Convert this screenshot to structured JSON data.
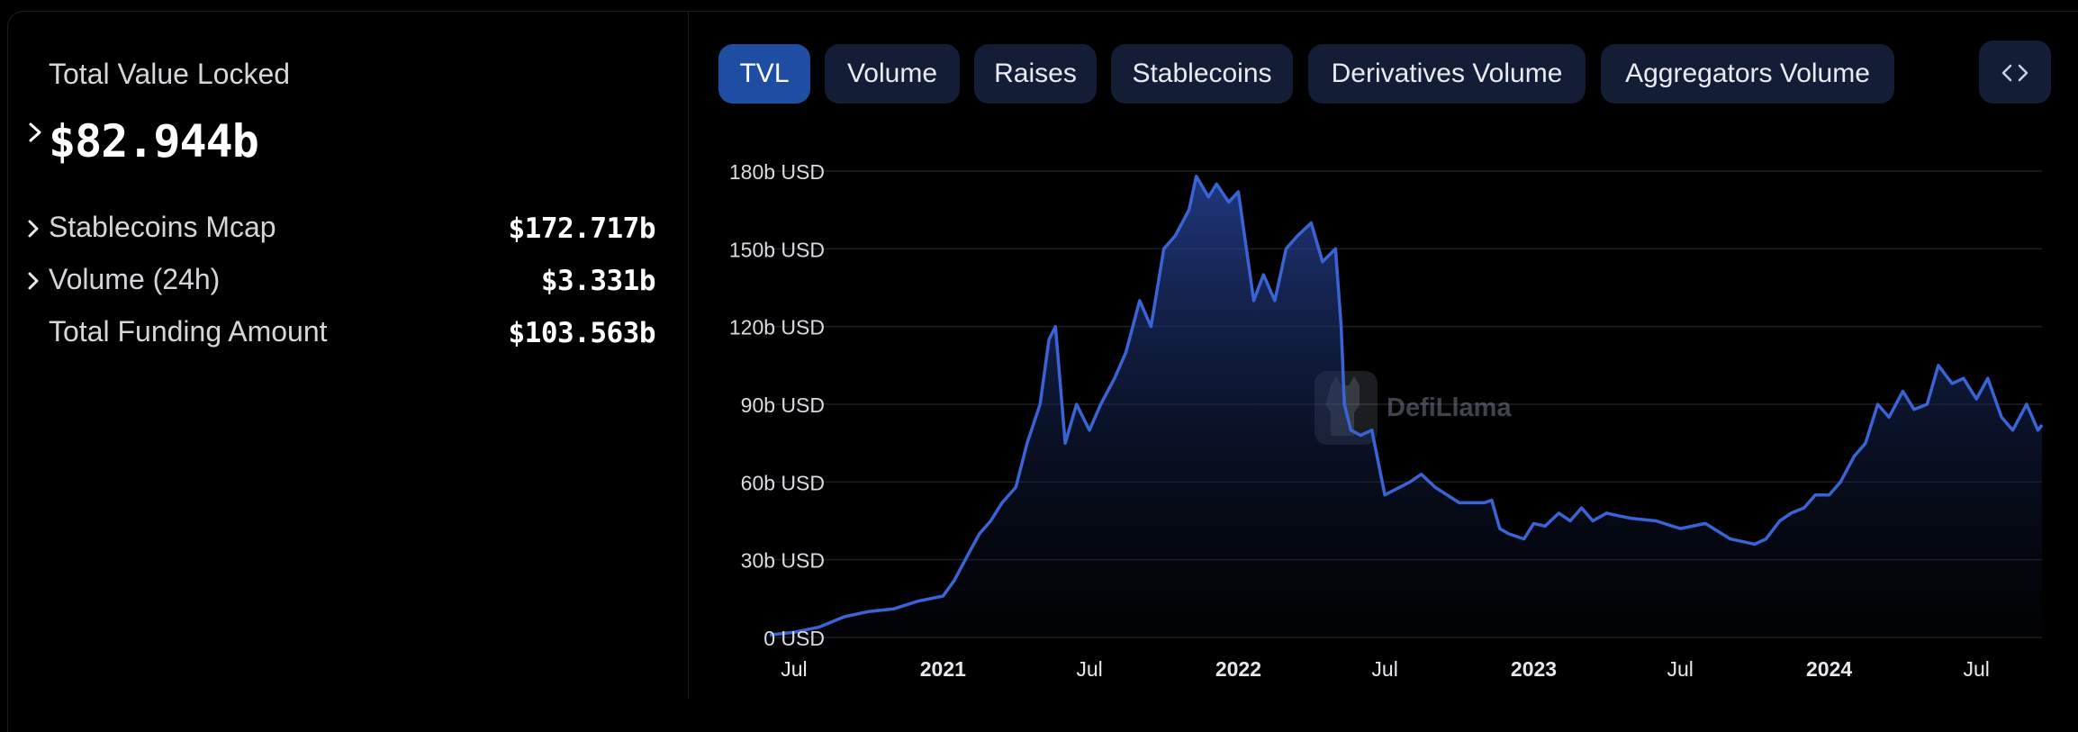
{
  "summary": {
    "tvl_label": "Total Value Locked",
    "tvl_value": "$82.944b",
    "rows": [
      {
        "name": "Stablecoins Mcap",
        "value": "$172.717b",
        "expandable": true
      },
      {
        "name": "Volume (24h)",
        "value": "$3.331b",
        "expandable": true
      },
      {
        "name": "Total Funding Amount",
        "value": "$103.563b",
        "expandable": false
      }
    ]
  },
  "tabs": [
    {
      "label": "TVL",
      "active": true
    },
    {
      "label": "Volume",
      "active": false
    },
    {
      "label": "Raises",
      "active": false
    },
    {
      "label": "Stablecoins",
      "active": false
    },
    {
      "label": "Derivatives Volume",
      "active": false
    },
    {
      "label": "Aggregators Volume",
      "active": false
    }
  ],
  "embed_icon": "code-brackets-icon",
  "watermark": "DefiLlama",
  "colors": {
    "line": "#3a63d6",
    "tab_active": "#1f4da3",
    "tab_inactive": "#131d35"
  },
  "chart_data": {
    "type": "area",
    "ylim": [
      0,
      180
    ],
    "y_ticks": [
      {
        "value": 0,
        "label": "0 USD"
      },
      {
        "value": 30,
        "label": "30b USD"
      },
      {
        "value": 60,
        "label": "60b USD"
      },
      {
        "value": 90,
        "label": "90b USD"
      },
      {
        "value": 120,
        "label": "120b USD"
      },
      {
        "value": 150,
        "label": "150b USD"
      },
      {
        "value": 180,
        "label": "180b USD"
      }
    ],
    "x_ticks": [
      {
        "date": "2020-07-01",
        "label": "Jul",
        "bold": false
      },
      {
        "date": "2021-01-01",
        "label": "2021",
        "bold": true
      },
      {
        "date": "2021-07-01",
        "label": "Jul",
        "bold": false
      },
      {
        "date": "2022-01-01",
        "label": "2022",
        "bold": true
      },
      {
        "date": "2022-07-01",
        "label": "Jul",
        "bold": false
      },
      {
        "date": "2023-01-01",
        "label": "2023",
        "bold": true
      },
      {
        "date": "2023-07-01",
        "label": "Jul",
        "bold": false
      },
      {
        "date": "2024-01-01",
        "label": "2024",
        "bold": true
      },
      {
        "date": "2024-07-01",
        "label": "Jul",
        "bold": false
      }
    ],
    "xlim": [
      "2020-06-01",
      "2024-09-20"
    ],
    "series": [
      {
        "x": [
          "2020-06-01",
          "2020-07-01",
          "2020-08-01",
          "2020-09-01",
          "2020-10-01",
          "2020-11-01",
          "2020-12-01",
          "2021-01-01",
          "2021-01-15",
          "2021-02-01",
          "2021-02-15",
          "2021-03-01",
          "2021-03-15",
          "2021-04-01",
          "2021-04-15",
          "2021-05-01",
          "2021-05-12",
          "2021-05-20",
          "2021-06-01",
          "2021-06-15",
          "2021-07-01",
          "2021-07-15",
          "2021-08-01",
          "2021-08-15",
          "2021-09-01",
          "2021-09-15",
          "2021-10-01",
          "2021-10-15",
          "2021-11-01",
          "2021-11-10",
          "2021-11-25",
          "2021-12-05",
          "2021-12-20",
          "2022-01-01",
          "2022-01-20",
          "2022-02-01",
          "2022-02-15",
          "2022-03-01",
          "2022-03-15",
          "2022-04-01",
          "2022-04-15",
          "2022-05-01",
          "2022-05-08",
          "2022-05-12",
          "2022-05-20",
          "2022-06-01",
          "2022-06-15",
          "2022-07-01",
          "2022-08-01",
          "2022-08-15",
          "2022-09-01",
          "2022-10-01",
          "2022-11-01",
          "2022-11-10",
          "2022-11-20",
          "2022-12-01",
          "2022-12-20",
          "2023-01-01",
          "2023-01-15",
          "2023-02-01",
          "2023-02-15",
          "2023-03-01",
          "2023-03-15",
          "2023-04-01",
          "2023-04-15",
          "2023-05-01",
          "2023-06-01",
          "2023-07-01",
          "2023-08-01",
          "2023-09-01",
          "2023-10-01",
          "2023-10-15",
          "2023-11-01",
          "2023-11-15",
          "2023-12-01",
          "2023-12-15",
          "2024-01-01",
          "2024-01-15",
          "2024-02-01",
          "2024-02-15",
          "2024-03-01",
          "2024-03-15",
          "2024-04-01",
          "2024-04-15",
          "2024-05-01",
          "2024-05-15",
          "2024-06-01",
          "2024-06-15",
          "2024-07-01",
          "2024-07-15",
          "2024-08-01",
          "2024-08-15",
          "2024-09-01",
          "2024-09-15",
          "2024-09-20"
        ],
        "values": [
          1,
          2,
          4,
          8,
          10,
          11,
          14,
          16,
          22,
          32,
          40,
          45,
          52,
          58,
          75,
          90,
          115,
          120,
          75,
          90,
          80,
          90,
          100,
          110,
          130,
          120,
          150,
          155,
          165,
          178,
          170,
          175,
          168,
          172,
          130,
          140,
          130,
          150,
          155,
          160,
          145,
          150,
          120,
          90,
          80,
          78,
          80,
          55,
          60,
          63,
          58,
          52,
          52,
          53,
          42,
          40,
          38,
          44,
          43,
          48,
          45,
          50,
          45,
          48,
          47,
          46,
          45,
          42,
          44,
          38,
          36,
          38,
          45,
          48,
          50,
          55,
          55,
          60,
          70,
          75,
          90,
          85,
          95,
          88,
          90,
          105,
          98,
          100,
          92,
          100,
          85,
          80,
          90,
          80,
          82
        ]
      }
    ]
  }
}
